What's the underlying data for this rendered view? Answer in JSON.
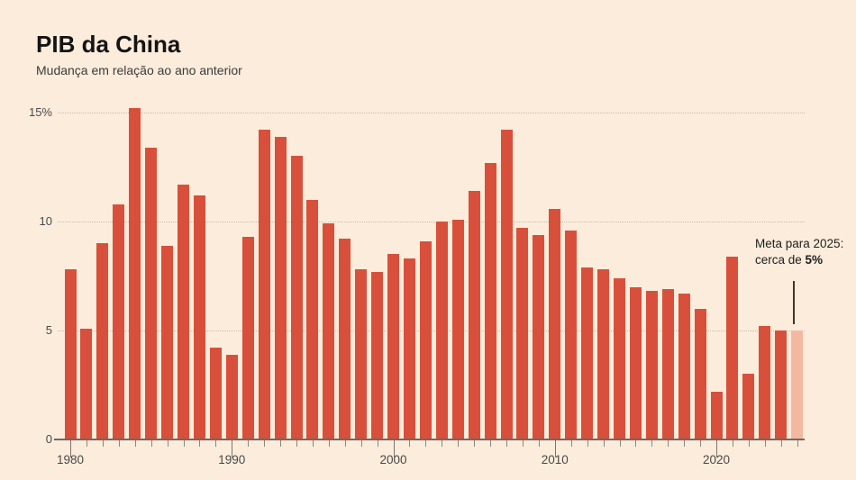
{
  "header": {
    "title": "PIB da China",
    "subtitle": "Mudança em relação ao ano anterior"
  },
  "annotation": {
    "line1": "Meta para 2025:",
    "line2_prefix": "cerca de ",
    "line2_bold": "5%"
  },
  "chart_data": {
    "type": "bar",
    "title": "PIB da China",
    "subtitle": "Mudança em relação ao ano anterior",
    "xlabel": "",
    "ylabel": "",
    "unit": "%",
    "ylim": [
      0,
      15
    ],
    "grid": "horizontal dotted lines at 5, 10, 15",
    "legend": "none",
    "yticks": [
      {
        "value": 0,
        "label": "0"
      },
      {
        "value": 5,
        "label": "5"
      },
      {
        "value": 10,
        "label": "10"
      },
      {
        "value": 15,
        "label": "15%"
      }
    ],
    "xticks": [
      1980,
      1990,
      2000,
      2010,
      2020
    ],
    "categories": [
      1980,
      1981,
      1982,
      1983,
      1984,
      1985,
      1986,
      1987,
      1988,
      1989,
      1990,
      1991,
      1992,
      1993,
      1994,
      1995,
      1996,
      1997,
      1998,
      1999,
      2000,
      2001,
      2002,
      2003,
      2004,
      2005,
      2006,
      2007,
      2008,
      2009,
      2010,
      2011,
      2012,
      2013,
      2014,
      2015,
      2016,
      2017,
      2018,
      2019,
      2020,
      2021,
      2022,
      2023,
      2024,
      2025
    ],
    "values": [
      7.8,
      5.1,
      9.0,
      10.8,
      15.2,
      13.4,
      8.9,
      11.7,
      11.2,
      4.2,
      3.9,
      9.3,
      14.2,
      13.9,
      13.0,
      11.0,
      9.9,
      9.2,
      7.8,
      7.7,
      8.5,
      8.3,
      9.1,
      10.0,
      10.1,
      11.4,
      12.7,
      14.2,
      9.7,
      9.4,
      10.6,
      9.6,
      7.9,
      7.8,
      7.4,
      7.0,
      6.8,
      6.9,
      6.7,
      6.0,
      2.2,
      8.4,
      3.0,
      5.2,
      5.0,
      5.0
    ],
    "highlight": {
      "year": 2025,
      "value": 5.0,
      "style": "light shaded bar (forecast/target)",
      "note": "Meta para 2025: cerca de 5%"
    },
    "colors": {
      "bar": "#d8503b",
      "highlight_bar": "#f4b8a1",
      "background": "#fbecdb",
      "gridline": "#c9bcaa",
      "axis": "#6f6a61",
      "text": "#141414"
    }
  }
}
